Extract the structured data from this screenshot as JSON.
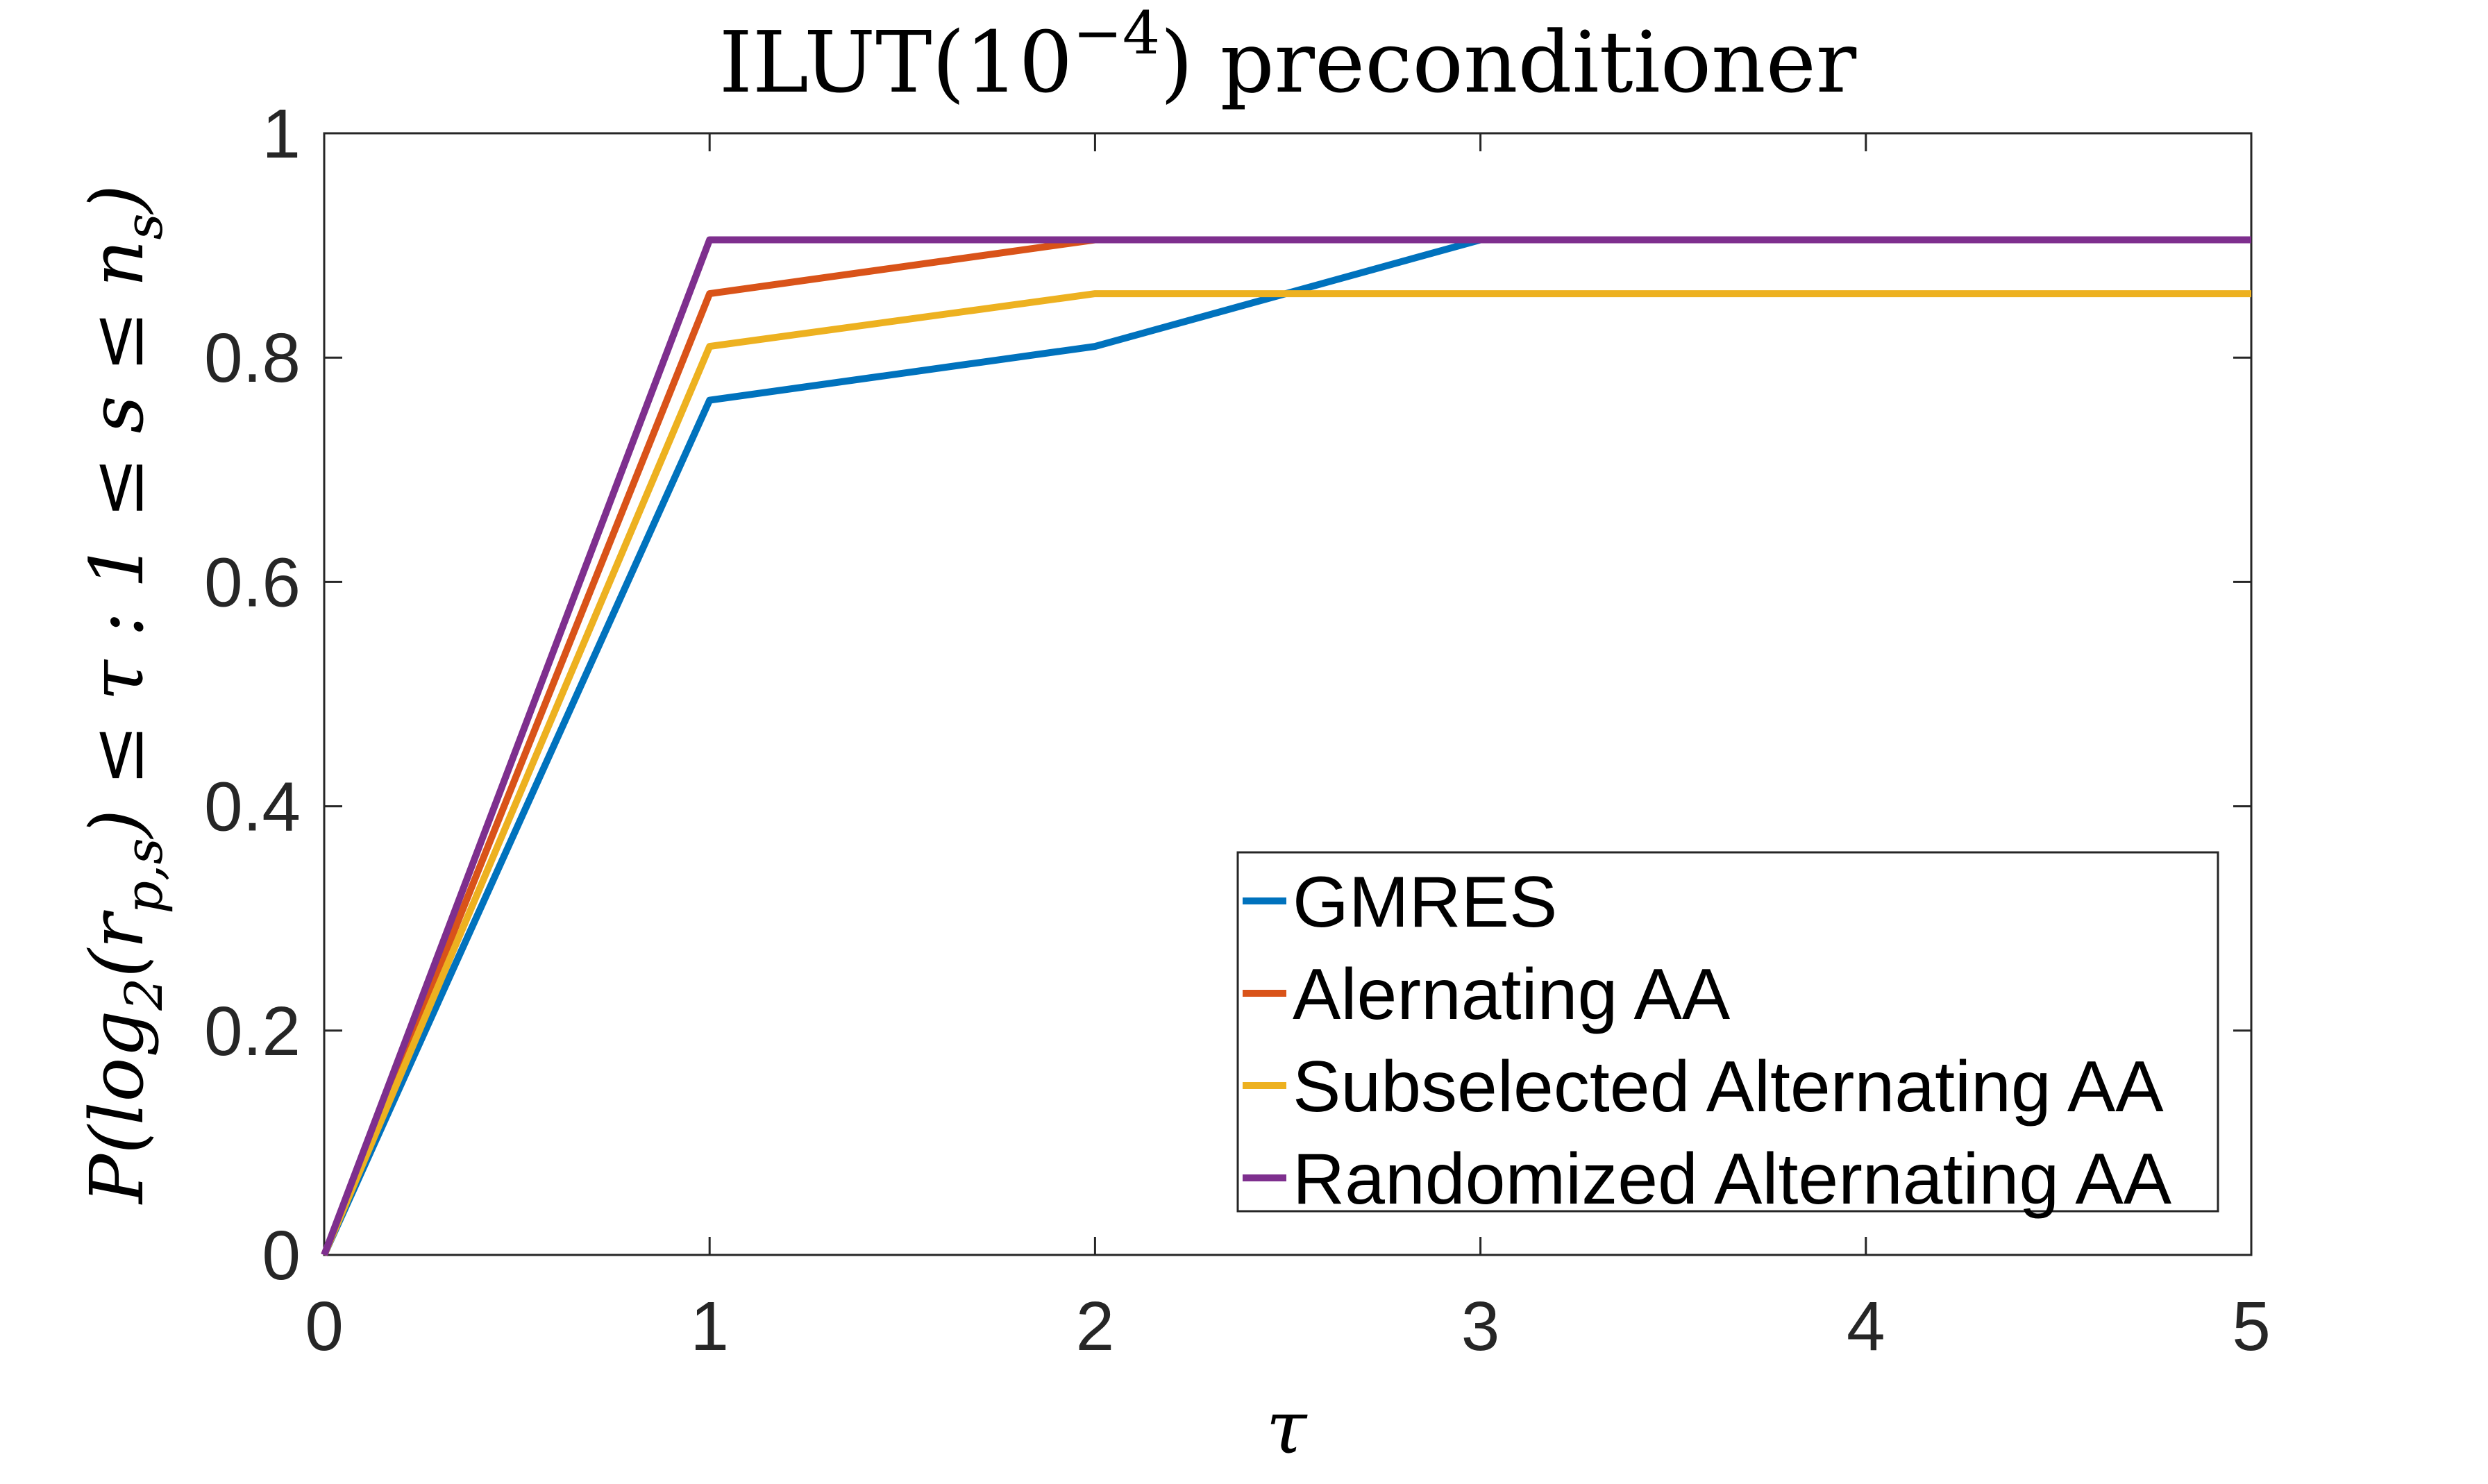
{
  "figure": {
    "background": "#ffffff",
    "axis_color": "#262626",
    "tick_label_color": "#262626",
    "title_parts": [
      {
        "t": "ILUT(10"
      },
      {
        "t": "−4",
        "sup": true
      },
      {
        "t": ") preconditioner"
      }
    ],
    "xlabel_parts": [
      {
        "t": "τ"
      }
    ],
    "ylabel_parts": [
      {
        "t": "P(log"
      },
      {
        "t": "2",
        "sub": true
      },
      {
        "t": "(r"
      },
      {
        "t": "p,s",
        "sub": true
      },
      {
        "t": ") ≤ τ : 1 ≤ s ≤ n"
      },
      {
        "t": "s",
        "sub": true
      },
      {
        "t": ")"
      }
    ]
  },
  "chart_data": {
    "type": "line",
    "title": "ILUT(10^{-4}) preconditioner",
    "xlabel": "τ",
    "ylabel": "P(log_2(r_{p,s}) <= tau : 1 <= s <= n_s)",
    "x": [
      0,
      1,
      2,
      3,
      4,
      5
    ],
    "series": [
      {
        "name": "GMRES",
        "color": "#0072BD",
        "values": [
          0,
          0.762,
          0.81,
          0.905,
          0.905,
          0.905
        ]
      },
      {
        "name": "Alernating AA",
        "color": "#D95319",
        "values": [
          0,
          0.857,
          0.905,
          0.905,
          0.905,
          0.905
        ]
      },
      {
        "name": "Subselected Alternating AA",
        "color": "#EDB120",
        "values": [
          0,
          0.81,
          0.857,
          0.857,
          0.857,
          0.857
        ]
      },
      {
        "name": "Randomized Alternating AA",
        "color": "#7E2F8E",
        "values": [
          0,
          0.905,
          0.905,
          0.905,
          0.905,
          0.905
        ]
      }
    ],
    "xlim": [
      0,
      5
    ],
    "ylim": [
      0,
      1
    ],
    "x_ticks": [
      {
        "v": 0,
        "label": "0"
      },
      {
        "v": 1,
        "label": "1"
      },
      {
        "v": 2,
        "label": "2"
      },
      {
        "v": 3,
        "label": "3"
      },
      {
        "v": 4,
        "label": "4"
      },
      {
        "v": 5,
        "label": "5"
      }
    ],
    "y_ticks": [
      {
        "v": 0,
        "label": "0"
      },
      {
        "v": 0.2,
        "label": "0.2"
      },
      {
        "v": 0.4,
        "label": "0.4"
      },
      {
        "v": 0.6,
        "label": "0.6"
      },
      {
        "v": 0.8,
        "label": "0.8"
      },
      {
        "v": 1,
        "label": "1"
      }
    ],
    "grid": false,
    "box": true,
    "tick_direction": "in",
    "legend_position": "lower-right-inside"
  }
}
